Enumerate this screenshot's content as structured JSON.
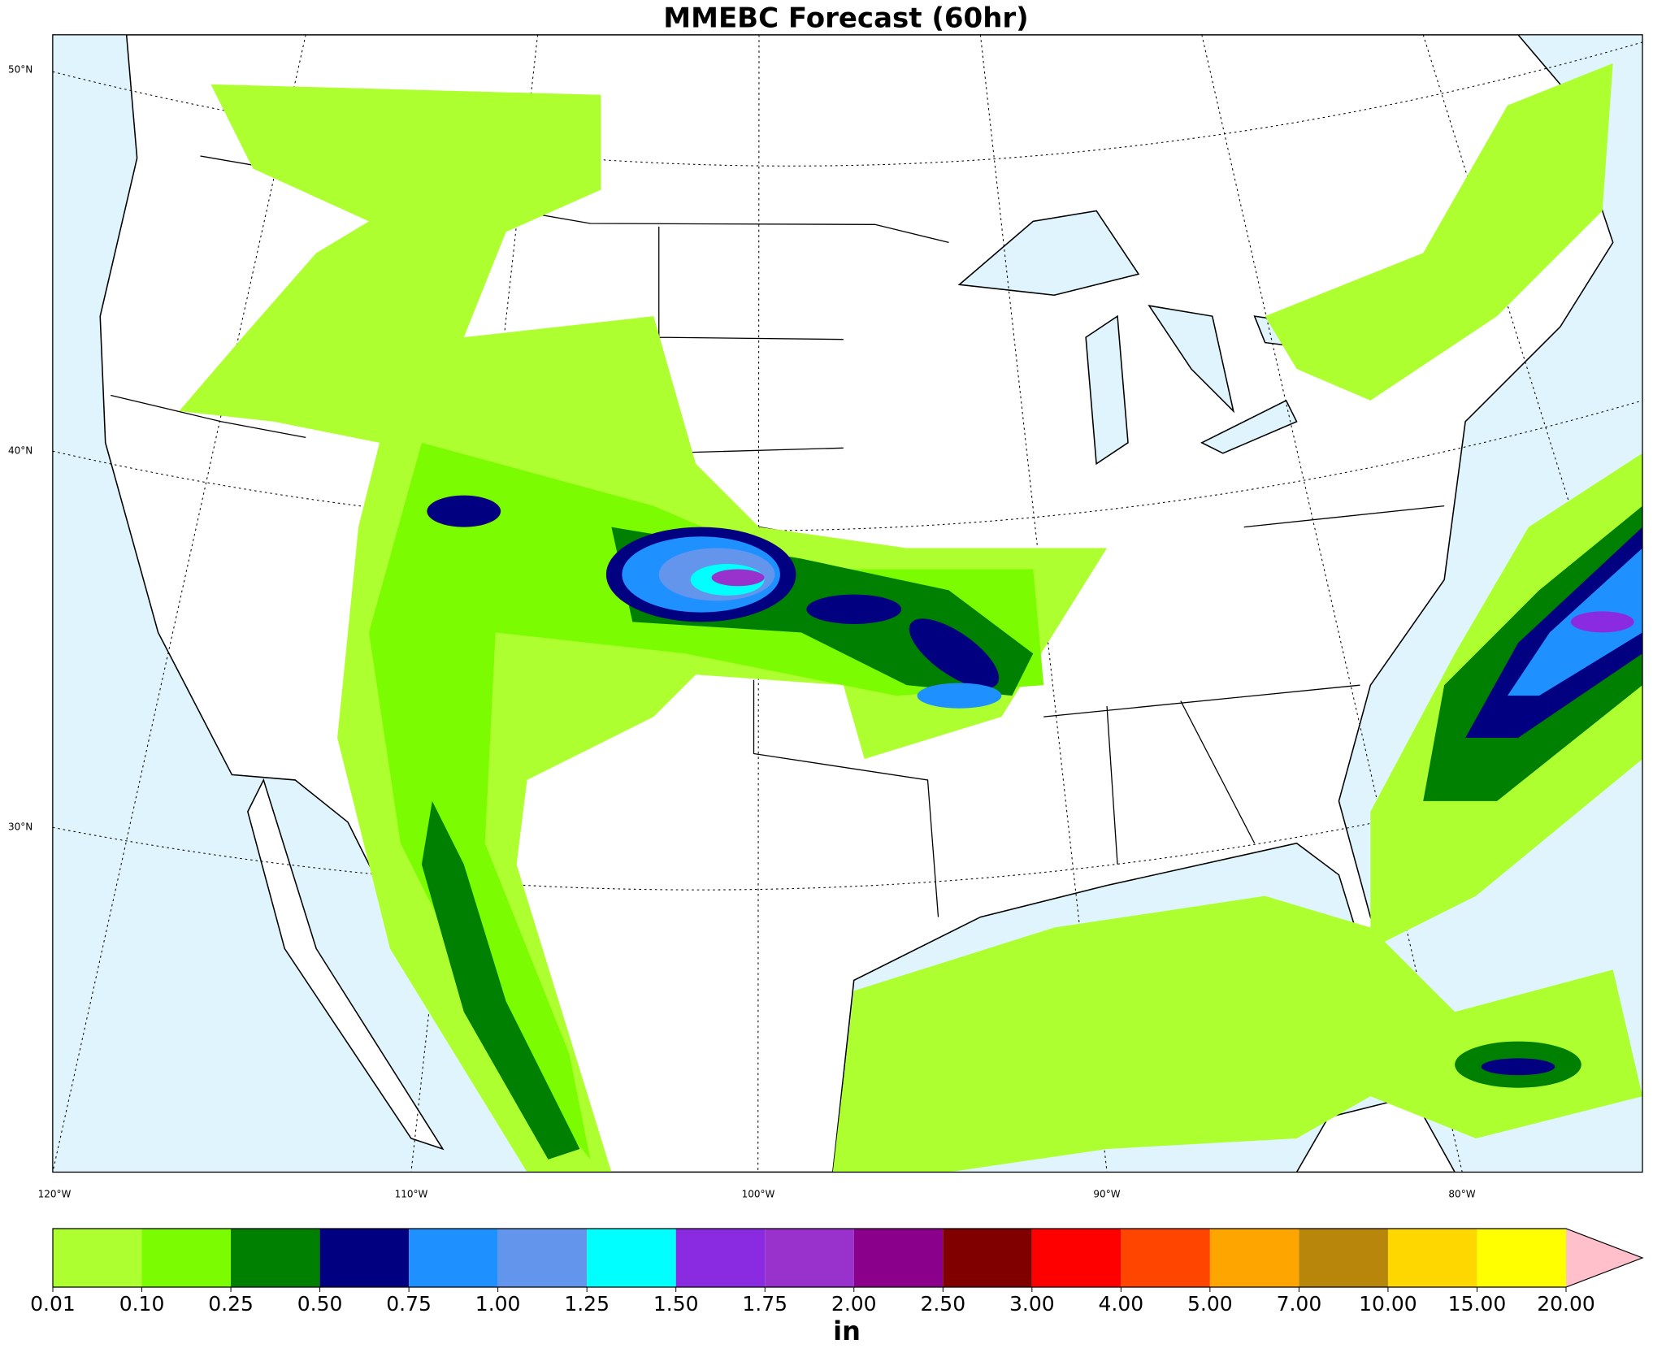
{
  "chart_data": {
    "type": "colorbar-map",
    "title": "MMEBC Forecast (60hr)",
    "lat_labels": [
      "50°N",
      "40°N",
      "30°N"
    ],
    "lon_labels": [
      "120°W",
      "110°W",
      "100°W",
      "90°W",
      "80°W"
    ],
    "colorbar": {
      "label": "in",
      "boundaries": [
        {
          "value": 0.01,
          "label": "0.01"
        },
        {
          "value": 0.1,
          "label": "0.10"
        },
        {
          "value": 0.25,
          "label": "0.25"
        },
        {
          "value": 0.5,
          "label": "0.50"
        },
        {
          "value": 0.75,
          "label": "0.75"
        },
        {
          "value": 1,
          "label": "1.00"
        },
        {
          "value": 1.25,
          "label": "1.25"
        },
        {
          "value": 1.5,
          "label": "1.50"
        },
        {
          "value": 1.75,
          "label": "1.75"
        },
        {
          "value": 2,
          "label": "2.00"
        },
        {
          "value": 2.5,
          "label": "2.50"
        },
        {
          "value": 3,
          "label": "3.00"
        },
        {
          "value": 4,
          "label": "4.00"
        },
        {
          "value": 5,
          "label": "5.00"
        },
        {
          "value": 7,
          "label": "7.00"
        },
        {
          "value": 10,
          "label": "10.00"
        },
        {
          "value": 15,
          "label": "15.00"
        },
        {
          "value": 20,
          "label": "20.00"
        }
      ],
      "colors": [
        "#adff2f",
        "#7cfc00",
        "#008000",
        "#000080",
        "#1e90ff",
        "#6495ed",
        "#00ffff",
        "#8a2be2",
        "#9932cc",
        "#8b008b",
        "#800000",
        "#ff0000",
        "#ff4500",
        "#ffa500",
        "#b8860b",
        "#ffd700",
        "#ffff00"
      ],
      "extend_color": "#ffc0cb"
    }
  }
}
